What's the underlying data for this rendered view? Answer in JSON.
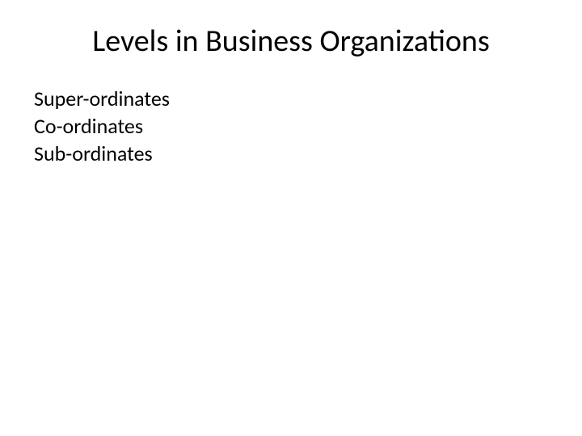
{
  "slide": {
    "title": "Levels in Business Organizations",
    "items": [
      "Super-ordinates",
      "Co-ordinates",
      "Sub-ordinates"
    ],
    "styling": {
      "background_color": "#ffffff",
      "title_color": "#000000",
      "title_fontsize": 38,
      "title_fontweight": 400,
      "body_color": "#000000",
      "body_fontsize": 26,
      "body_fontweight": 400,
      "font_family": "Calibri"
    }
  }
}
